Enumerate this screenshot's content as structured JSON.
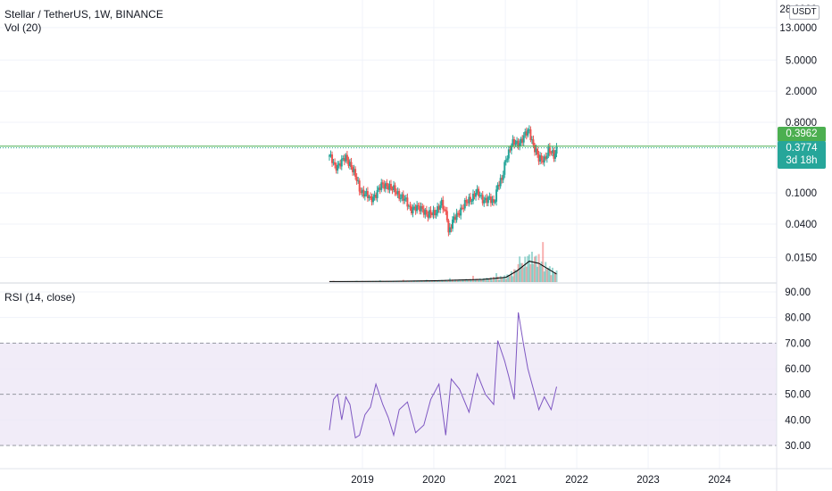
{
  "header": {
    "title": "Stellar / TetherUS, 1W, BINANCE",
    "volume_label": "Vol (20)",
    "rsi_label": "RSI (14, close)"
  },
  "price_axis": {
    "unit": "USDT",
    "ticks": [
      "28.0000",
      "13.0000",
      "5.0000",
      "2.0000",
      "0.8000",
      "0.1000",
      "0.0400",
      "0.0150"
    ]
  },
  "rsi_axis": {
    "ticks": [
      "90.00",
      "80.00",
      "70.00",
      "60.00",
      "50.00",
      "40.00",
      "30.00"
    ]
  },
  "time_axis": {
    "ticks": [
      "2019",
      "2020",
      "2021",
      "2022",
      "2023",
      "2024"
    ]
  },
  "badges": {
    "level_price": "0.3962",
    "last_price": "0.3774",
    "countdown": "3d 18h"
  },
  "colors": {
    "up": "#26a69a",
    "down": "#ef5350",
    "level_line": "#4caf50",
    "rsi_line": "#7e57c2",
    "rsi_band": "#ede7f6",
    "volume_ma": "#000000"
  },
  "chart_data": [
    {
      "type": "candlestick",
      "title": "Stellar / TetherUS, 1W, BINANCE",
      "scale": "log",
      "x_range": [
        "2018-07",
        "2024-12"
      ],
      "y_range": [
        0.01,
        28
      ],
      "horizontal_level": 0.3962,
      "last_price": 0.3774,
      "close_path": [
        [
          "2018-07-16",
          0.3
        ],
        [
          "2018-08-13",
          0.21
        ],
        [
          "2018-09-10",
          0.25
        ],
        [
          "2018-10-08",
          0.27
        ],
        [
          "2018-11-05",
          0.23
        ],
        [
          "2018-11-26",
          0.16
        ],
        [
          "2018-12-17",
          0.11
        ],
        [
          "2019-01-14",
          0.1
        ],
        [
          "2019-02-11",
          0.08
        ],
        [
          "2019-03-11",
          0.1
        ],
        [
          "2019-04-08",
          0.12
        ],
        [
          "2019-05-06",
          0.13
        ],
        [
          "2019-06-03",
          0.11
        ],
        [
          "2019-07-01",
          0.1
        ],
        [
          "2019-08-05",
          0.08
        ],
        [
          "2019-09-02",
          0.065
        ],
        [
          "2019-10-07",
          0.062
        ],
        [
          "2019-11-04",
          0.065
        ],
        [
          "2019-12-02",
          0.05
        ],
        [
          "2020-01-06",
          0.058
        ],
        [
          "2020-02-10",
          0.07
        ],
        [
          "2020-03-09",
          0.052
        ],
        [
          "2020-03-16",
          0.032
        ],
        [
          "2020-04-13",
          0.045
        ],
        [
          "2020-05-11",
          0.06
        ],
        [
          "2020-06-08",
          0.07
        ],
        [
          "2020-07-06",
          0.085
        ],
        [
          "2020-08-03",
          0.1
        ],
        [
          "2020-09-07",
          0.085
        ],
        [
          "2020-10-05",
          0.082
        ],
        [
          "2020-11-02",
          0.075
        ],
        [
          "2020-11-23",
          0.13
        ],
        [
          "2020-12-14",
          0.14
        ],
        [
          "2021-01-04",
          0.28
        ],
        [
          "2021-02-01",
          0.42
        ],
        [
          "2021-03-01",
          0.42
        ],
        [
          "2021-04-05",
          0.52
        ],
        [
          "2021-05-03",
          0.62
        ],
        [
          "2021-05-24",
          0.42
        ],
        [
          "2021-06-21",
          0.26
        ],
        [
          "2021-07-19",
          0.28
        ],
        [
          "2021-08-09",
          0.34
        ],
        [
          "2021-09-06",
          0.3
        ],
        [
          "2021-09-20",
          0.3774
        ]
      ],
      "volume_ma_path": [
        [
          "2018-07-16",
          0.02
        ],
        [
          "2019-06-03",
          0.03
        ],
        [
          "2020-01-06",
          0.05
        ],
        [
          "2020-09-07",
          0.1
        ],
        [
          "2021-01-04",
          0.18
        ],
        [
          "2021-03-01",
          0.42
        ],
        [
          "2021-05-03",
          0.78
        ],
        [
          "2021-06-21",
          0.7
        ],
        [
          "2021-09-20",
          0.3
        ]
      ]
    },
    {
      "type": "line",
      "title": "RSI (14, close)",
      "y_range": [
        25,
        92
      ],
      "bands": [
        30,
        50,
        70
      ],
      "x": [
        "2018-07-16",
        "2018-08-06",
        "2018-08-27",
        "2018-09-17",
        "2018-10-08",
        "2018-10-29",
        "2018-11-26",
        "2018-12-17",
        "2019-01-14",
        "2019-02-11",
        "2019-03-11",
        "2019-04-15",
        "2019-05-13",
        "2019-06-10",
        "2019-07-08",
        "2019-08-19",
        "2019-09-30",
        "2019-11-11",
        "2019-12-16",
        "2020-01-27",
        "2020-03-02",
        "2020-03-30",
        "2020-05-11",
        "2020-06-29",
        "2020-08-10",
        "2020-09-21",
        "2020-11-02",
        "2020-11-23",
        "2020-12-28",
        "2021-01-18",
        "2021-02-15",
        "2021-03-08",
        "2021-04-05",
        "2021-04-26",
        "2021-05-24",
        "2021-06-21",
        "2021-07-19",
        "2021-08-23",
        "2021-09-20"
      ],
      "values": [
        36,
        48,
        50,
        40,
        49,
        46,
        33,
        34,
        42,
        45,
        54,
        46,
        41,
        34,
        44,
        47,
        35,
        38,
        48,
        54,
        34,
        56,
        52,
        43,
        58,
        50,
        46,
        71,
        63,
        57,
        48,
        82,
        69,
        60,
        52,
        44,
        49,
        44,
        53
      ]
    }
  ]
}
